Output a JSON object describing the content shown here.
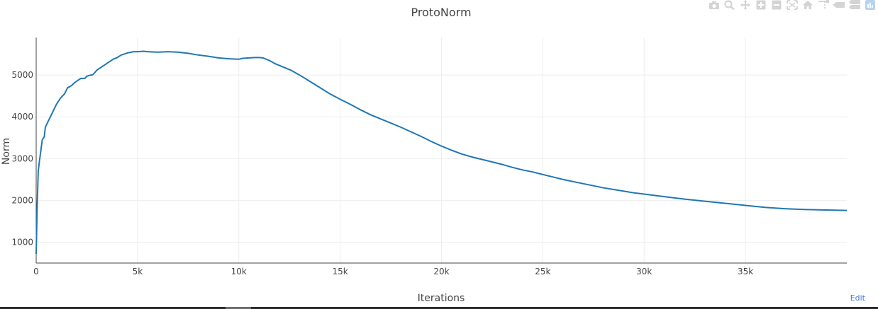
{
  "chart_data": {
    "type": "line",
    "title": "ProtoNorm",
    "xlabel": "Iterations",
    "ylabel": "Norm",
    "xlim": [
      0,
      40000
    ],
    "ylim": [
      500,
      5900
    ],
    "x_ticks": [
      {
        "value": 0,
        "label": "0"
      },
      {
        "value": 5000,
        "label": "5k"
      },
      {
        "value": 10000,
        "label": "10k"
      },
      {
        "value": 15000,
        "label": "15k"
      },
      {
        "value": 20000,
        "label": "20k"
      },
      {
        "value": 25000,
        "label": "25k"
      },
      {
        "value": 30000,
        "label": "30k"
      },
      {
        "value": 35000,
        "label": "35k"
      }
    ],
    "y_ticks": [
      {
        "value": 1000,
        "label": "1000"
      },
      {
        "value": 2000,
        "label": "2000"
      },
      {
        "value": 3000,
        "label": "3000"
      },
      {
        "value": 4000,
        "label": "4000"
      },
      {
        "value": 5000,
        "label": "5000"
      }
    ],
    "grid": true,
    "line_color": "#1f77b4",
    "series": [
      {
        "x": [
          0,
          50,
          100,
          150,
          300,
          400,
          450,
          550,
          650,
          800,
          1000,
          1200,
          1400,
          1550,
          1650,
          1750,
          1900,
          2050,
          2200,
          2400,
          2500,
          2600,
          2800,
          3000,
          3400,
          3800,
          4000,
          4200,
          4500,
          4800,
          5000,
          5300,
          5500,
          6000,
          6500,
          7000,
          7500,
          8000,
          8500,
          9000,
          9500,
          10000,
          10200,
          10500,
          10800,
          11000,
          11200,
          11500,
          11800,
          12200,
          12600,
          13000,
          13500,
          14000,
          14500,
          15000,
          15500,
          16000,
          16500,
          17000,
          17500,
          18000,
          18500,
          19000,
          19500,
          20000,
          20500,
          21000,
          21500,
          22000,
          22500,
          23000,
          23500,
          24000,
          24500,
          25000,
          25500,
          26000,
          26500,
          27000,
          27500,
          28000,
          28500,
          29000,
          29500,
          30000,
          31000,
          32000,
          33000,
          34000,
          35000,
          36000,
          37000,
          38000,
          39000,
          40000
        ],
        "y": [
          720,
          1850,
          2700,
          2900,
          3450,
          3520,
          3750,
          3850,
          3950,
          4100,
          4300,
          4450,
          4550,
          4700,
          4720,
          4750,
          4820,
          4870,
          4920,
          4920,
          4970,
          4990,
          5010,
          5120,
          5250,
          5380,
          5420,
          5480,
          5530,
          5560,
          5560,
          5570,
          5560,
          5550,
          5560,
          5550,
          5520,
          5480,
          5450,
          5410,
          5390,
          5380,
          5400,
          5410,
          5420,
          5420,
          5410,
          5350,
          5270,
          5190,
          5110,
          5000,
          4850,
          4700,
          4550,
          4420,
          4300,
          4170,
          4050,
          3950,
          3850,
          3750,
          3640,
          3530,
          3410,
          3300,
          3200,
          3110,
          3040,
          2980,
          2920,
          2860,
          2790,
          2730,
          2680,
          2620,
          2560,
          2500,
          2450,
          2400,
          2350,
          2300,
          2260,
          2220,
          2180,
          2150,
          2090,
          2030,
          1980,
          1930,
          1880,
          1830,
          1800,
          1780,
          1770,
          1760
        ]
      }
    ]
  },
  "modebar": {
    "icons": [
      "camera-icon",
      "zoom-icon",
      "pan-icon",
      "zoom-in-icon",
      "zoom-out-icon",
      "autoscale-icon",
      "reset-axes-icon",
      "spike-lines-icon",
      "hover-closest-icon",
      "hover-compare-icon",
      "plotly-logo-icon"
    ]
  },
  "edit_link": "Edit"
}
